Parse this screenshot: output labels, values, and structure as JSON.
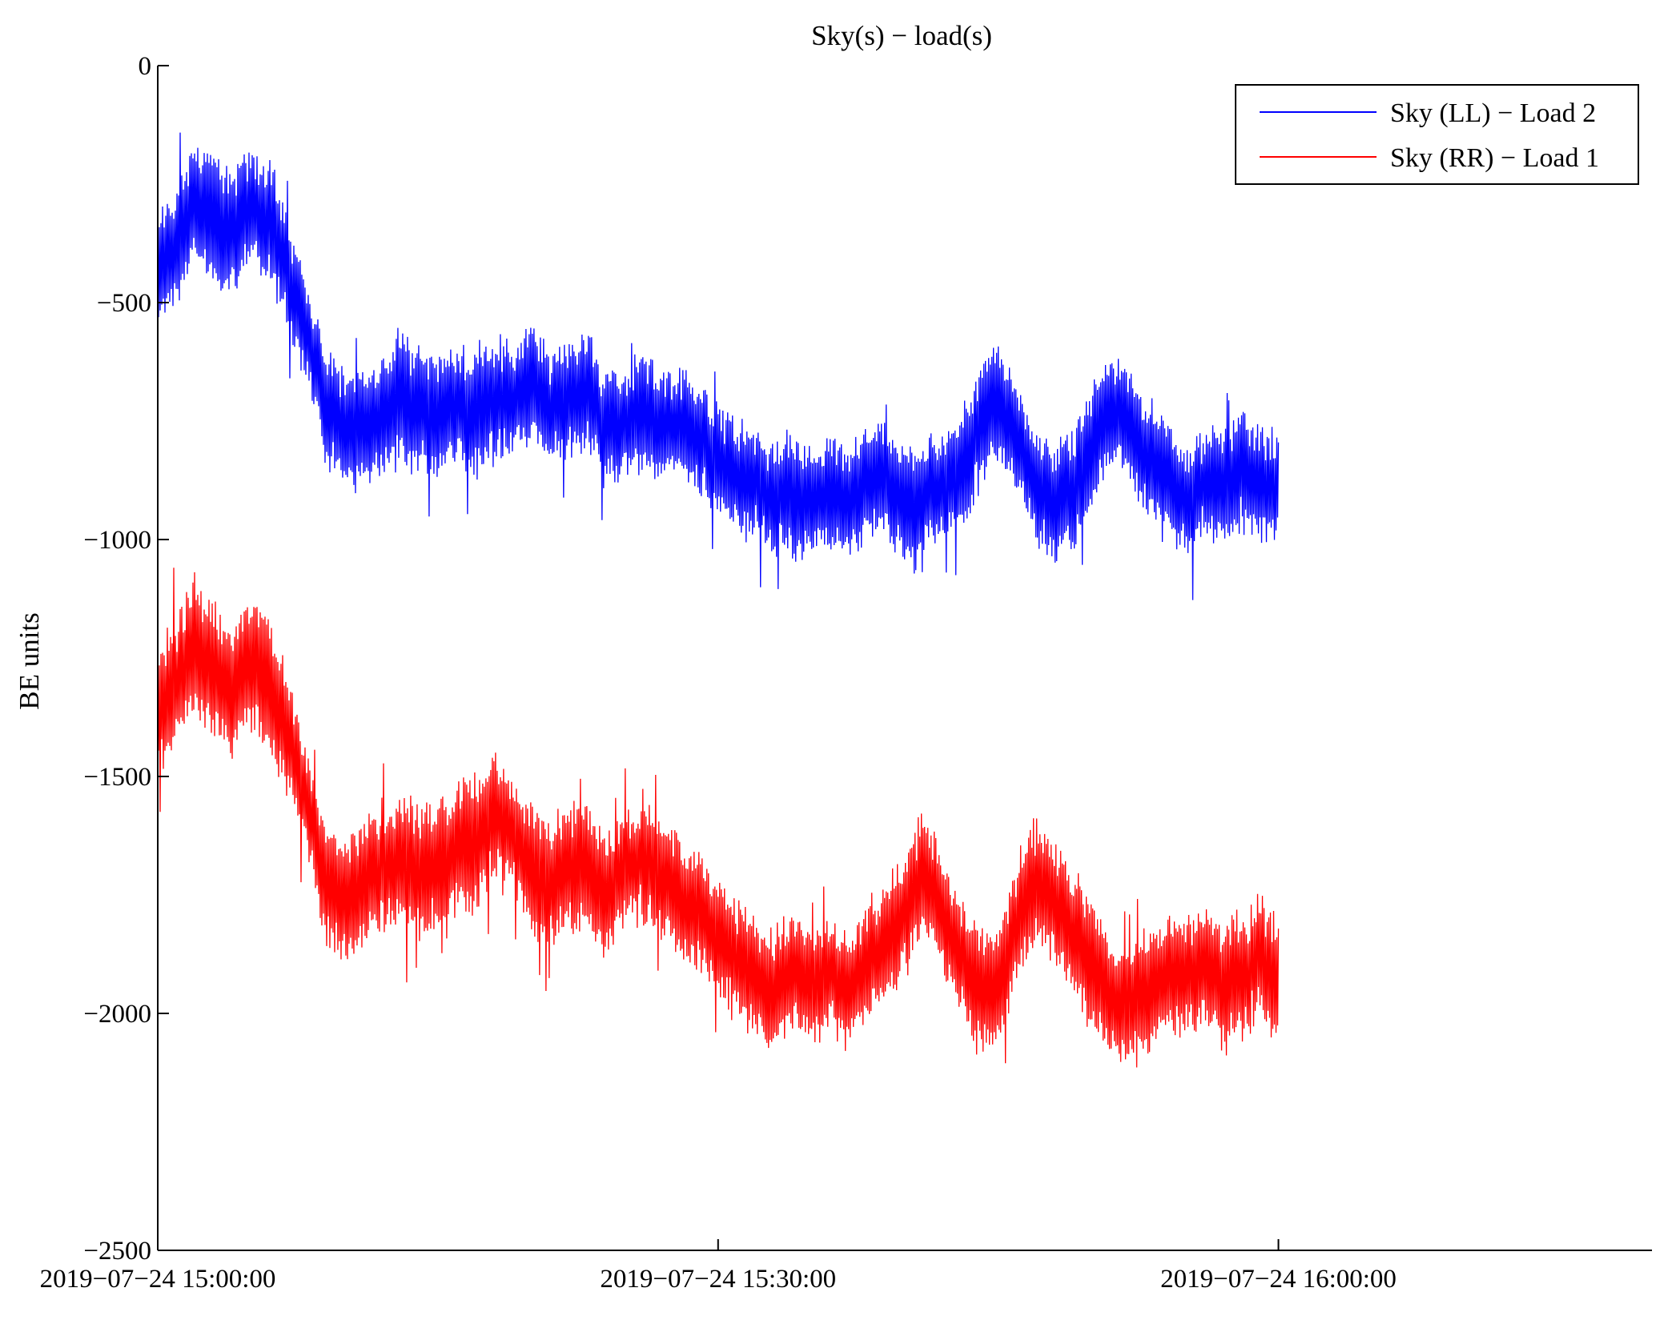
{
  "chart_data": {
    "type": "line",
    "title": "Sky(s) − load(s)",
    "xlabel": "",
    "ylabel": "BE units",
    "ylim": [
      -2500,
      0
    ],
    "xlim_minutes": [
      0,
      80
    ],
    "yticks": [
      0,
      -500,
      -1000,
      -1500,
      -2000,
      -2500
    ],
    "ytick_labels": [
      "0",
      "−500",
      "−1000",
      "−1500",
      "−2000",
      "−2500"
    ],
    "xticks_minutes": [
      0,
      30,
      60
    ],
    "xtick_labels": [
      "2019−07−24 15:00:00",
      "2019−07−24 15:30:00",
      "2019−07−24 16:00:00"
    ],
    "legend_position": "top-right",
    "series": [
      {
        "name": "Sky (LL) − Load 2",
        "color": "#0000ff",
        "t_minutes": [
          0,
          1,
          2,
          3,
          4,
          5,
          6,
          7,
          8,
          9,
          10,
          11,
          12,
          13,
          14,
          15,
          16,
          17,
          18,
          19,
          20,
          21,
          22,
          23,
          24,
          25,
          26,
          27,
          28,
          29,
          30,
          31,
          32,
          33,
          34,
          35,
          36,
          37,
          38,
          39,
          40,
          41,
          42,
          43,
          44,
          45,
          46,
          47,
          48,
          49,
          50,
          51,
          52,
          53,
          54,
          55,
          56,
          57,
          58,
          59,
          60
        ],
        "values": [
          -430,
          -380,
          -280,
          -320,
          -360,
          -290,
          -330,
          -450,
          -560,
          -720,
          -770,
          -760,
          -750,
          -700,
          -730,
          -740,
          -720,
          -730,
          -700,
          -710,
          -680,
          -720,
          -700,
          -690,
          -770,
          -750,
          -730,
          -760,
          -750,
          -790,
          -830,
          -870,
          -880,
          -920,
          -900,
          -930,
          -910,
          -930,
          -880,
          -880,
          -930,
          -900,
          -890,
          -860,
          -760,
          -700,
          -790,
          -880,
          -920,
          -900,
          -800,
          -730,
          -750,
          -820,
          -860,
          -920,
          -880,
          -890,
          -850,
          -880,
          -900
        ],
        "amplitude": [
          110,
          120,
          130,
          140,
          130,
          120,
          130,
          120,
          110,
          120,
          120,
          130,
          120,
          140,
          130,
          130,
          120,
          140,
          130,
          120,
          130,
          120,
          130,
          120,
          120,
          110,
          120,
          110,
          110,
          120,
          110,
          120,
          110,
          120,
          130,
          110,
          120,
          110,
          120,
          110,
          120,
          110,
          110,
          120,
          130,
          130,
          120,
          120,
          130,
          120,
          130,
          120,
          120,
          120,
          110,
          120,
          110,
          120,
          120,
          120,
          110
        ]
      },
      {
        "name": "Sky (RR) − Load 1",
        "color": "#ff0000",
        "t_minutes": [
          0,
          1,
          2,
          3,
          4,
          5,
          6,
          7,
          8,
          9,
          10,
          11,
          12,
          13,
          14,
          15,
          16,
          17,
          18,
          19,
          20,
          21,
          22,
          23,
          24,
          25,
          26,
          27,
          28,
          29,
          30,
          31,
          32,
          33,
          34,
          35,
          36,
          37,
          38,
          39,
          40,
          41,
          42,
          43,
          44,
          45,
          46,
          47,
          48,
          49,
          50,
          51,
          52,
          53,
          54,
          55,
          56,
          57,
          58,
          59,
          60
        ],
        "values": [
          -1360,
          -1300,
          -1220,
          -1280,
          -1320,
          -1260,
          -1300,
          -1420,
          -1560,
          -1720,
          -1770,
          -1720,
          -1690,
          -1680,
          -1700,
          -1680,
          -1650,
          -1640,
          -1580,
          -1620,
          -1700,
          -1720,
          -1700,
          -1690,
          -1760,
          -1700,
          -1670,
          -1710,
          -1760,
          -1790,
          -1830,
          -1890,
          -1930,
          -1950,
          -1900,
          -1940,
          -1910,
          -1950,
          -1880,
          -1850,
          -1790,
          -1700,
          -1790,
          -1880,
          -1960,
          -1950,
          -1810,
          -1720,
          -1770,
          -1830,
          -1900,
          -1960,
          -1980,
          -1960,
          -1920,
          -1930,
          -1900,
          -1950,
          -1920,
          -1880,
          -1930
        ],
        "amplitude": [
          130,
          140,
          150,
          150,
          140,
          130,
          140,
          130,
          120,
          130,
          130,
          140,
          130,
          140,
          140,
          140,
          130,
          140,
          140,
          130,
          140,
          130,
          140,
          130,
          130,
          120,
          130,
          120,
          120,
          130,
          120,
          130,
          120,
          130,
          140,
          120,
          130,
          120,
          130,
          120,
          130,
          120,
          120,
          130,
          130,
          130,
          130,
          130,
          140,
          130,
          140,
          130,
          130,
          130,
          120,
          130,
          120,
          130,
          130,
          130,
          120
        ]
      }
    ]
  }
}
